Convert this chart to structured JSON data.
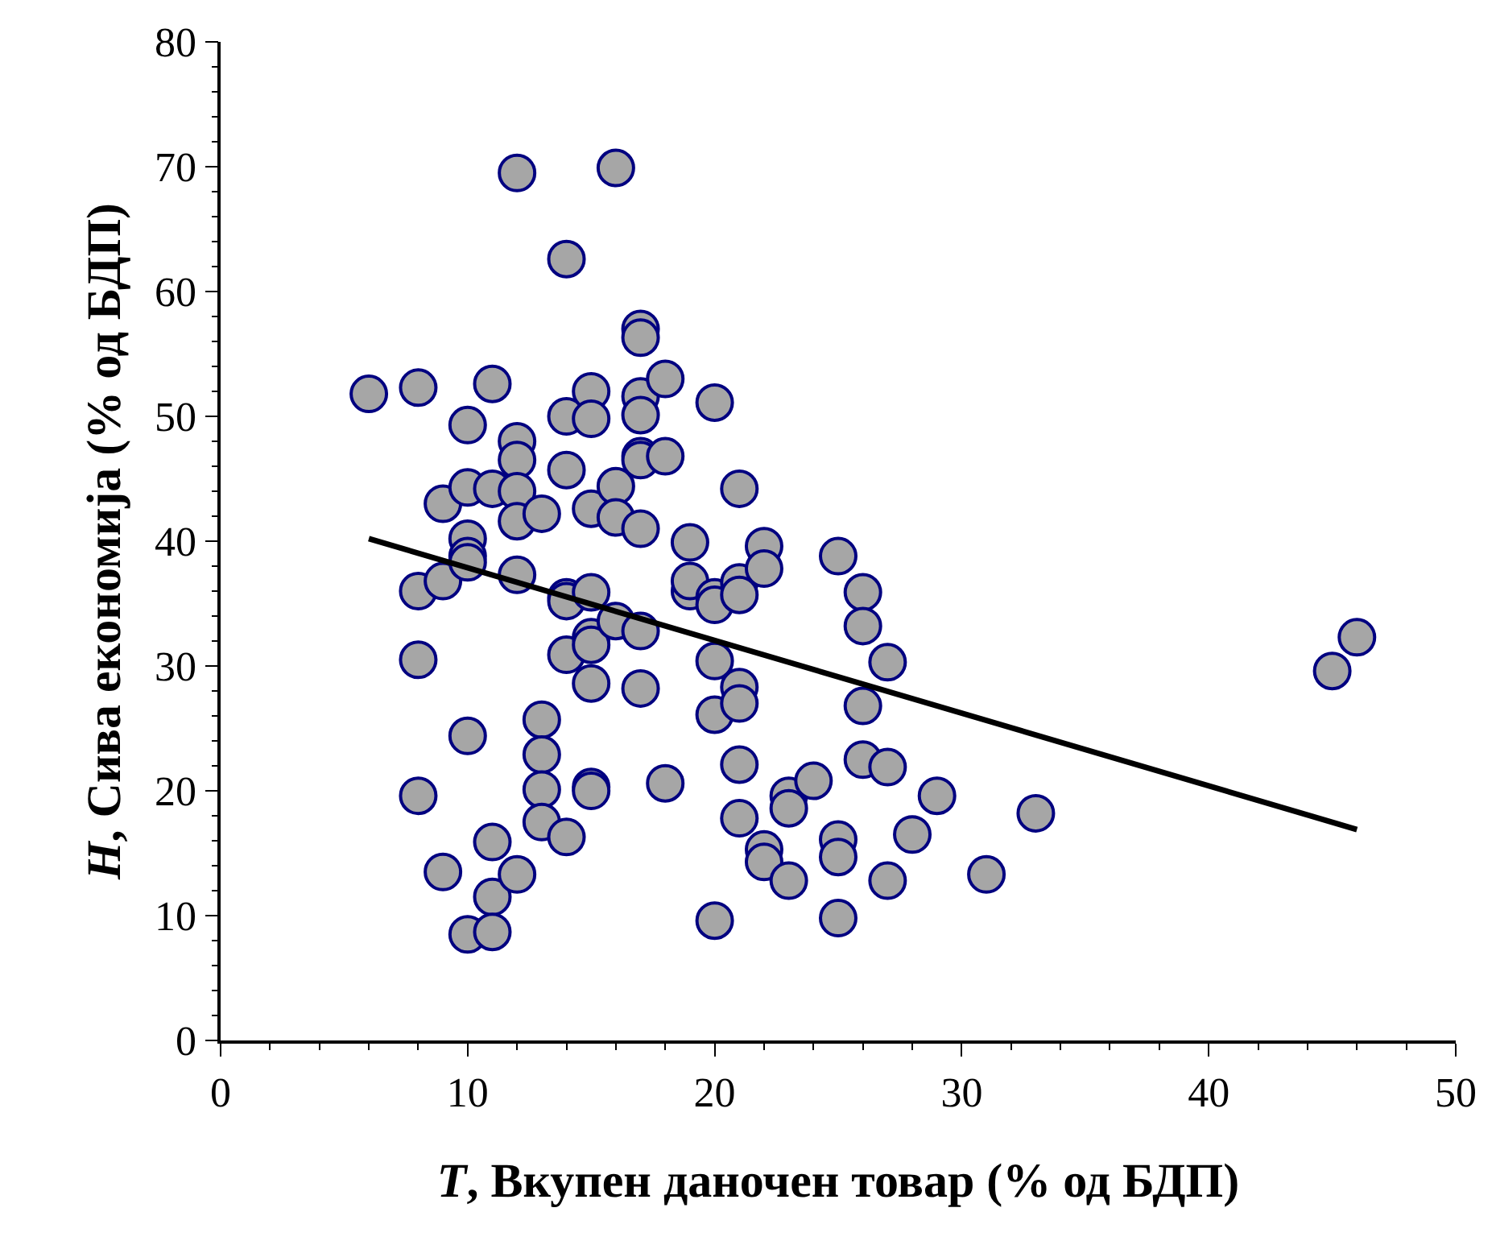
{
  "chart_data": {
    "type": "scatter",
    "xlabel": "T, Вкупен даночен товар (% од БДП)",
    "ylabel": "H, Сива економија (% од БДП)",
    "xlim": [
      0,
      50
    ],
    "xticks": [
      0,
      10,
      20,
      30,
      40,
      50
    ],
    "ylim": [
      0,
      80
    ],
    "yticks": [
      0,
      10,
      20,
      30,
      40,
      50,
      60,
      70,
      80
    ],
    "legend": false,
    "marker": "circle",
    "series": [
      {
        "color": "#a6a6a6",
        "x": [
          6,
          8,
          8,
          8,
          8,
          9,
          9,
          9,
          10,
          10,
          10,
          10,
          10,
          10,
          10,
          11,
          11,
          11,
          11,
          11,
          12,
          12,
          12,
          12,
          12,
          12,
          12,
          13,
          13,
          13,
          13,
          13,
          14,
          14,
          14,
          14,
          14,
          14,
          14,
          15,
          15,
          15,
          15,
          15,
          15,
          15,
          15,
          15,
          16,
          16,
          16,
          16,
          17,
          17,
          17,
          17,
          17,
          17,
          17,
          17,
          17,
          18,
          18,
          18,
          19,
          19,
          19,
          20,
          20,
          20,
          20,
          20,
          20,
          21,
          21,
          21,
          21,
          21,
          21,
          21,
          22,
          22,
          22,
          22,
          23,
          23,
          23,
          24,
          25,
          25,
          25,
          25,
          26,
          26,
          26,
          26,
          27,
          27,
          27,
          28,
          29,
          31,
          33,
          45,
          46
        ],
        "values": [
          51.8,
          52.3,
          36,
          30.5,
          19.6,
          43,
          36.8,
          13.5,
          49.3,
          44.3,
          40.2,
          38.8,
          38.3,
          24.4,
          8.5,
          52.6,
          44.2,
          15.9,
          11.5,
          8.7,
          69.5,
          48,
          46.5,
          44,
          41.6,
          37.3,
          13.3,
          42.2,
          25.7,
          22.9,
          20.1,
          17.5,
          62.6,
          50,
          45.7,
          35.5,
          35.2,
          30.9,
          16.3,
          52,
          49.8,
          42.6,
          35.9,
          32.3,
          31.7,
          28.6,
          20.3,
          20,
          69.9,
          44.4,
          41.9,
          33.6,
          57,
          56.3,
          51.6,
          50.1,
          46.8,
          46.5,
          41,
          32.8,
          28.2,
          53,
          46.8,
          20.6,
          39.9,
          36,
          36.8,
          51.1,
          35.5,
          34.9,
          30.4,
          26.1,
          9.6,
          44.2,
          36.7,
          35.7,
          28.3,
          27,
          22.1,
          17.8,
          39.6,
          37.8,
          15.3,
          14.3,
          19.6,
          18.6,
          12.8,
          20.8,
          38.8,
          16.1,
          14.7,
          9.8,
          35.9,
          33.2,
          26.8,
          22.5,
          30.3,
          21.9,
          12.8,
          16.5,
          19.6,
          13.3,
          18.2,
          29.6,
          32.3
        ]
      },
      {
        "type": "line",
        "color": "#000000",
        "line_style": "solid",
        "marker": "none",
        "x": [
          6,
          46
        ],
        "values": [
          40.2,
          16.9
        ]
      }
    ]
  }
}
